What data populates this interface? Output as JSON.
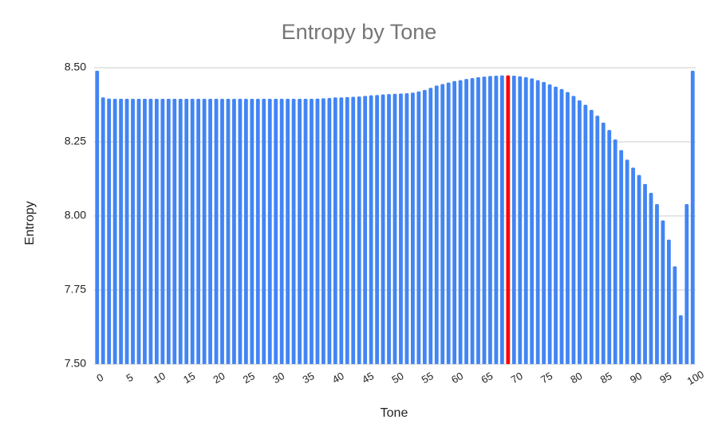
{
  "chart_data": {
    "type": "bar",
    "title": "Entropy by Tone",
    "x_label": "Tone",
    "y_label": "Entropy",
    "categories": [
      0,
      null,
      null,
      null,
      null,
      5,
      null,
      null,
      null,
      null,
      10,
      null,
      null,
      null,
      null,
      15,
      null,
      null,
      null,
      null,
      20,
      null,
      null,
      null,
      null,
      25,
      null,
      null,
      null,
      null,
      30,
      null,
      null,
      null,
      null,
      35,
      null,
      null,
      null,
      null,
      40,
      null,
      null,
      null,
      null,
      45,
      null,
      null,
      null,
      null,
      50,
      null,
      null,
      null,
      null,
      55,
      null,
      null,
      null,
      null,
      60,
      null,
      null,
      null,
      null,
      65,
      null,
      null,
      null,
      null,
      70,
      null,
      null,
      null,
      null,
      75,
      null,
      null,
      null,
      null,
      80,
      null,
      null,
      null,
      null,
      85,
      null,
      null,
      null,
      null,
      90,
      null,
      null,
      null,
      null,
      95,
      null,
      null,
      null,
      null,
      100
    ],
    "values": [
      8.49,
      8.4,
      8.396,
      8.395,
      8.395,
      8.395,
      8.395,
      8.395,
      8.395,
      8.395,
      8.395,
      8.395,
      8.395,
      8.395,
      8.395,
      8.395,
      8.395,
      8.395,
      8.395,
      8.395,
      8.395,
      8.395,
      8.395,
      8.395,
      8.395,
      8.395,
      8.395,
      8.395,
      8.395,
      8.395,
      8.395,
      8.395,
      8.395,
      8.395,
      8.395,
      8.395,
      8.395,
      8.396,
      8.397,
      8.398,
      8.4,
      8.4,
      8.401,
      8.402,
      8.403,
      8.405,
      8.407,
      8.408,
      8.41,
      8.411,
      8.412,
      8.413,
      8.414,
      8.416,
      8.42,
      8.425,
      8.432,
      8.44,
      8.445,
      8.45,
      8.455,
      8.458,
      8.462,
      8.465,
      8.468,
      8.47,
      8.472,
      8.473,
      8.474,
      8.474,
      8.473,
      8.471,
      8.468,
      8.464,
      8.458,
      8.452,
      8.444,
      8.436,
      8.428,
      8.418,
      8.405,
      8.39,
      8.375,
      8.358,
      8.338,
      8.315,
      8.29,
      8.258,
      8.222,
      8.19,
      8.163,
      8.138,
      8.108,
      8.078,
      8.04,
      7.985,
      7.92,
      7.83,
      7.665,
      8.04,
      8.49
    ],
    "color": "#4285f4",
    "highlight": {
      "index": 69,
      "color": "#ff0000"
    },
    "ylim": [
      7.5,
      8.5
    ],
    "yticks": [
      {
        "value": 7.5,
        "label": "7.50"
      },
      {
        "value": 7.75,
        "label": "7.75"
      },
      {
        "value": 8.0,
        "label": "8.00"
      },
      {
        "value": 8.25,
        "label": "8.25"
      },
      {
        "value": 8.5,
        "label": "8.50"
      }
    ],
    "grid": true
  }
}
